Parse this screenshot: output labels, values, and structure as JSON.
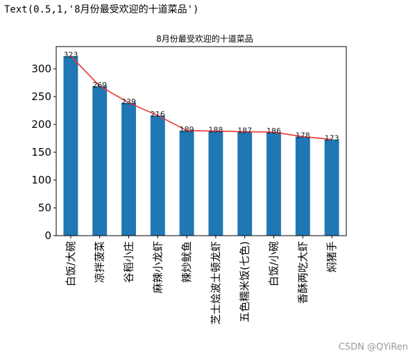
{
  "output_text": "Text(0.5,1,'8月份最受欢迎的十道菜品')",
  "watermark": "CSDN @QYiRen",
  "chart_data": {
    "type": "bar",
    "title": "8月份最受欢迎的十道菜品",
    "xlabel": "",
    "ylabel": "",
    "categories": [
      "白饭/大碗",
      "凉拌菠菜",
      "谷稻小庄",
      "麻辣小龙虾",
      "辣炒鱿鱼",
      "芝士烩波士顿龙虾",
      "五色糯米饭(七色)",
      "白饭/小碗",
      "香酥两吃大虾",
      "焖猪手"
    ],
    "values": [
      323,
      269,
      239,
      216,
      189,
      188,
      187,
      186,
      178,
      173
    ],
    "ylim": [
      0,
      340
    ],
    "yticks": [
      0,
      50,
      100,
      150,
      200,
      250,
      300
    ],
    "bar_color": "#1f77b4",
    "line_color": "#ee3333",
    "grid": false,
    "overlay": "line"
  }
}
